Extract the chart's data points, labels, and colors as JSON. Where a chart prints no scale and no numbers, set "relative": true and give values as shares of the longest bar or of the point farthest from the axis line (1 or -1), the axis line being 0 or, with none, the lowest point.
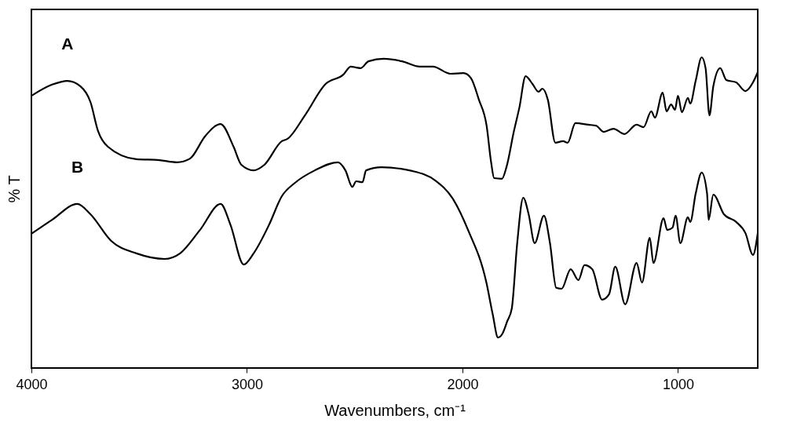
{
  "chart_data": {
    "type": "line",
    "relative": true,
    "xlabel": "Wavenumbers, cm⁻¹",
    "ylabel": "% T",
    "xlim": [
      4000,
      630
    ],
    "xticks": [
      4000,
      3000,
      2000,
      1000
    ],
    "legend": false,
    "series": [
      {
        "name": "A",
        "color": "#000000",
        "x": [
          4000,
          3904,
          3833,
          3773,
          3726,
          3691,
          3645,
          3513,
          3406,
          3325,
          3264,
          3193,
          3122,
          3062,
          3026,
          2969,
          2919,
          2838,
          2813,
          2731,
          2635,
          2553,
          2518,
          2493,
          2472,
          2436,
          2365,
          2280,
          2198,
          2137,
          2056,
          1995,
          1960,
          1924,
          1888,
          1867,
          1853,
          1817,
          1796,
          1761,
          1736,
          1707,
          1675,
          1647,
          1629,
          1604,
          1569,
          1533,
          1512,
          1476,
          1416,
          1380,
          1345,
          1299,
          1249,
          1192,
          1160,
          1124,
          1107,
          1071,
          1053,
          1032,
          1014,
          1000,
          982,
          954,
          943,
          918,
          890,
          872,
          854,
          836,
          804,
          776,
          730,
          687,
          652,
          630
        ],
        "values": [
          0.876,
          0.912,
          0.924,
          0.907,
          0.856,
          0.763,
          0.712,
          0.672,
          0.669,
          0.662,
          0.674,
          0.747,
          0.785,
          0.712,
          0.654,
          0.636,
          0.654,
          0.73,
          0.737,
          0.813,
          0.914,
          0.944,
          0.97,
          0.967,
          0.965,
          0.987,
          0.995,
          0.987,
          0.97,
          0.97,
          0.947,
          0.949,
          0.932,
          0.864,
          0.78,
          0.662,
          0.611,
          0.609,
          0.646,
          0.763,
          0.838,
          0.939,
          0.914,
          0.889,
          0.899,
          0.864,
          0.725,
          0.73,
          0.725,
          0.788,
          0.783,
          0.78,
          0.76,
          0.77,
          0.753,
          0.783,
          0.775,
          0.826,
          0.806,
          0.886,
          0.826,
          0.848,
          0.831,
          0.876,
          0.823,
          0.869,
          0.851,
          0.924,
          1.0,
          0.965,
          0.813,
          0.907,
          0.965,
          0.927,
          0.919,
          0.891,
          0.919,
          0.952
        ]
      },
      {
        "name": "B",
        "color": "#000000",
        "x": [
          4000,
          3904,
          3787,
          3726,
          3630,
          3513,
          3382,
          3310,
          3218,
          3122,
          3076,
          3015,
          2969,
          2898,
          2838,
          2777,
          2685,
          2578,
          2543,
          2511,
          2493,
          2464,
          2447,
          2376,
          2233,
          2127,
          2045,
          1974,
          1889,
          1860,
          1835,
          1814,
          1793,
          1771,
          1746,
          1718,
          1693,
          1665,
          1622,
          1594,
          1565,
          1540,
          1498,
          1462,
          1434,
          1398,
          1352,
          1320,
          1291,
          1245,
          1192,
          1167,
          1131,
          1114,
          1067,
          1050,
          1025,
          1011,
          989,
          954,
          943,
          918,
          890,
          865,
          858,
          836,
          787,
          730,
          687,
          652,
          630
        ],
        "values": [
          0.432,
          0.477,
          0.528,
          0.495,
          0.409,
          0.369,
          0.351,
          0.369,
          0.444,
          0.528,
          0.46,
          0.333,
          0.369,
          0.46,
          0.553,
          0.596,
          0.636,
          0.662,
          0.636,
          0.583,
          0.601,
          0.598,
          0.636,
          0.646,
          0.634,
          0.604,
          0.545,
          0.444,
          0.275,
          0.174,
          0.098,
          0.111,
          0.149,
          0.192,
          0.402,
          0.548,
          0.495,
          0.402,
          0.49,
          0.402,
          0.258,
          0.255,
          0.318,
          0.283,
          0.331,
          0.318,
          0.22,
          0.237,
          0.326,
          0.205,
          0.338,
          0.275,
          0.419,
          0.338,
          0.482,
          0.444,
          0.452,
          0.49,
          0.402,
          0.485,
          0.47,
          0.561,
          0.629,
          0.561,
          0.477,
          0.558,
          0.495,
          0.47,
          0.434,
          0.364,
          0.434
        ]
      }
    ]
  }
}
